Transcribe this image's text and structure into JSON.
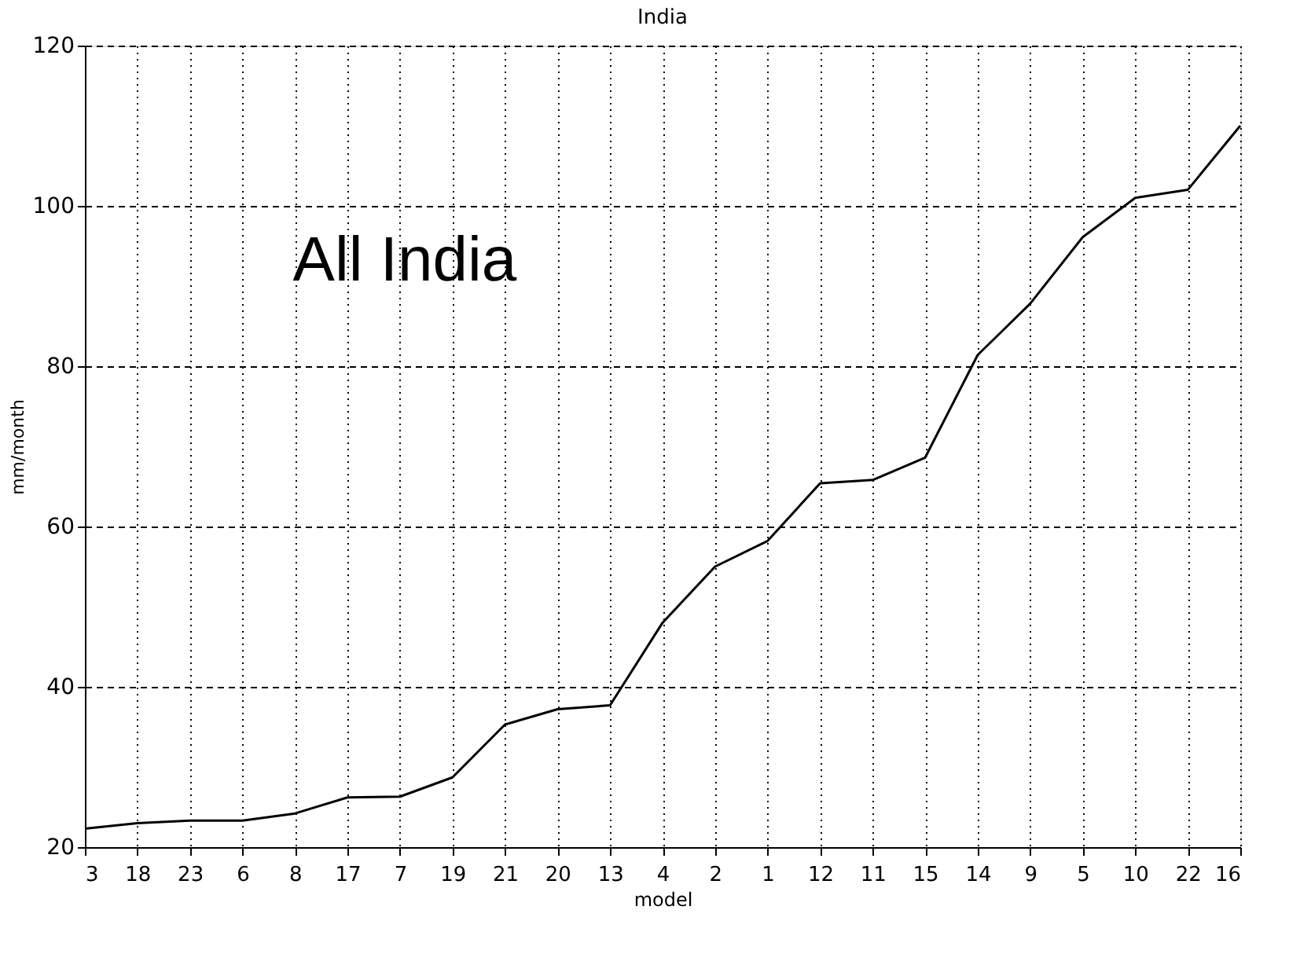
{
  "chart_data": {
    "type": "line",
    "title": "India",
    "xlabel": "model",
    "ylabel": "mm/month",
    "categories": [
      "3",
      "18",
      "23",
      "6",
      "8",
      "17",
      "7",
      "19",
      "21",
      "20",
      "13",
      "4",
      "2",
      "1",
      "12",
      "11",
      "15",
      "14",
      "9",
      "5",
      "10",
      "22",
      "16"
    ],
    "series": [
      {
        "color": "#000000",
        "values": [
          22.3,
          23.0,
          23.3,
          23.3,
          24.2,
          26.2,
          26.3,
          28.7,
          35.3,
          37.2,
          37.7,
          48.0,
          55.0,
          58.2,
          65.4,
          65.8,
          68.6,
          81.4,
          87.8,
          96.1,
          101.0,
          102.0,
          110.0
        ]
      }
    ],
    "ylim": [
      20,
      120
    ],
    "yticks": [
      20,
      40,
      60,
      80,
      100,
      120
    ],
    "grid": true,
    "marker": "none",
    "line_style": "solid",
    "annotations": [
      "All India"
    ]
  }
}
